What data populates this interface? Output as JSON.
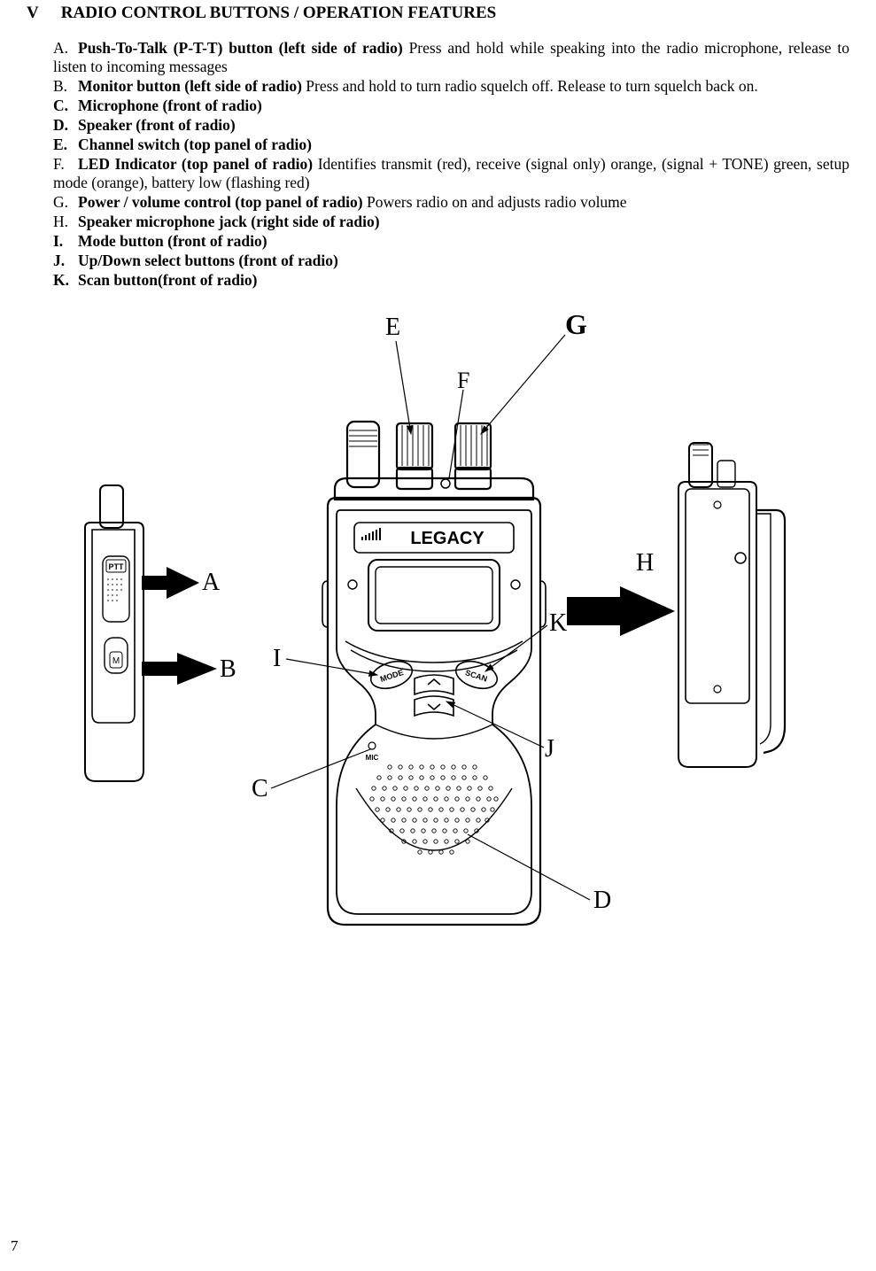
{
  "heading": {
    "section_number": "V",
    "title": "RADIO CONTROL BUTTONS / OPERATION FEATURES"
  },
  "items": [
    {
      "marker": "A.",
      "bold": "Push-To-Talk (P-T-T) button (left side of radio) ",
      "rest": "Press and hold while speaking into the radio microphone, release to listen to incoming messages",
      "justify": true,
      "marker_bold": false
    },
    {
      "marker": "B.",
      "bold": "Monitor button (left side of radio) ",
      "rest": "Press and hold to turn radio squelch off. Release to turn squelch back on.",
      "justify": false,
      "marker_bold": false
    },
    {
      "marker": "C.",
      "bold": "Microphone (front of radio)",
      "rest": "",
      "justify": false,
      "marker_bold": true
    },
    {
      "marker": "D.",
      "bold": "Speaker (front of radio)",
      "rest": "",
      "justify": false,
      "marker_bold": true
    },
    {
      "marker": "E.",
      "bold": "Channel switch (top panel of radio)",
      "rest": "",
      "justify": false,
      "marker_bold": true
    },
    {
      "marker": "F.",
      "bold": "LED Indicator (top panel of radio) ",
      "rest": "Identifies transmit (red), receive (signal only) orange, (signal + TONE) green, setup mode (orange), battery low (flashing red)",
      "justify": true,
      "marker_bold": false
    },
    {
      "marker": "G.",
      "bold": "Power / volume control (top panel of radio) ",
      "rest": "Powers radio on and adjusts radio volume",
      "justify": false,
      "marker_bold": false
    },
    {
      "marker": "H.",
      "bold": "Speaker microphone jack (right side of radio)",
      "rest": "",
      "justify": false,
      "marker_bold": false
    },
    {
      "marker": "I.",
      "bold": "Mode button (front of radio)",
      "rest": "",
      "justify": false,
      "marker_bold": true
    },
    {
      "marker": "J.",
      "bold": "Up/Down select buttons (front of radio)",
      "rest": "",
      "justify": false,
      "marker_bold": true
    },
    {
      "marker": "K.",
      "bold": "Scan button(front of radio)",
      "rest": "",
      "justify": false,
      "marker_bold": true
    }
  ],
  "callouts": {
    "A": "A",
    "B": "B",
    "C": "C",
    "D": "D",
    "E": "E",
    "F": "F",
    "G": "G",
    "H": "H",
    "I": "I",
    "J": "J",
    "K": "K"
  },
  "labels_in_diagram": {
    "brand": "LEGACY",
    "ptt": "PTT",
    "monitor": "M",
    "mode": "MODE",
    "scan": "SCAN",
    "mic": "MIC"
  },
  "page_number": "7",
  "colors": {
    "fg": "#000000",
    "bg": "#ffffff"
  }
}
